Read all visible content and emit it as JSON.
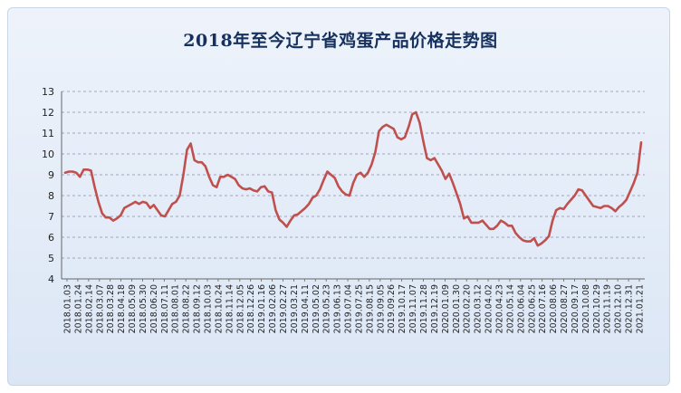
{
  "chart_data": {
    "type": "line",
    "title": "2018年至今辽宁省鸡蛋产品价格走势图",
    "xlabel": "",
    "ylabel": "",
    "ylim": [
      4,
      13
    ],
    "y_ticks": [
      4,
      5,
      6,
      7,
      8,
      9,
      10,
      11,
      12,
      13
    ],
    "grid": true,
    "legend": "none",
    "line_color": "#c0504d",
    "x_ticks": [
      "2018.01.03",
      "2018.01.24",
      "2018.02.14",
      "2018.03.07",
      "2018.03.28",
      "2018.04.18",
      "2018.05.09",
      "2018.05.30",
      "2018.06.20",
      "2018.07.11",
      "2018.08.01",
      "2018.08.22",
      "2018.09.12",
      "2018.10.03",
      "2018.10.24",
      "2018.11.14",
      "2018.12.05",
      "2018.12.26",
      "2019.01.16",
      "2019.02.06",
      "2019.02.27",
      "2019.03.21",
      "2019.04.11",
      "2019.05.02",
      "2019.05.23",
      "2019.06.13",
      "2019.07.04",
      "2019.07.25",
      "2019.08.15",
      "2019.09.05",
      "2019.09.26",
      "2019.10.17",
      "2019.11.07",
      "2019.11.28",
      "2019.12.19",
      "2020.01.09",
      "2020.01.30",
      "2020.02.20",
      "2020.03.12",
      "2020.04.02",
      "2020.04.23",
      "2020.05.14",
      "2020.06.04",
      "2020.06.25",
      "2020.07.16",
      "2020.08.06",
      "2020.08.27",
      "2020.09.17",
      "2020.10.08",
      "2020.10.29",
      "2020.11.19",
      "2020.12.10",
      "2020.12.31",
      "2021.01.21"
    ],
    "series": [
      {
        "values": [
          9.1,
          9.15,
          9.15,
          9.1,
          8.9,
          9.25,
          9.25,
          9.2,
          8.4,
          7.7,
          7.15,
          6.95,
          6.95,
          6.8,
          6.9,
          7.05,
          7.4,
          7.5,
          7.6,
          7.7,
          7.6,
          7.7,
          7.65,
          7.4,
          7.55,
          7.3,
          7.05,
          7.0,
          7.3,
          7.6,
          7.7,
          8.0,
          9.0,
          10.2,
          10.5,
          9.7,
          9.6,
          9.6,
          9.4,
          8.9,
          8.5,
          8.4,
          8.9,
          8.9,
          9.0,
          8.9,
          8.8,
          8.5,
          8.35,
          8.3,
          8.35,
          8.25,
          8.2,
          8.4,
          8.45,
          8.2,
          8.15,
          7.3,
          6.85,
          6.7,
          6.5,
          6.8,
          7.05,
          7.1,
          7.25,
          7.4,
          7.6,
          7.9,
          8.0,
          8.3,
          8.75,
          9.15,
          9.0,
          8.85,
          8.45,
          8.2,
          8.05,
          8.0,
          8.6,
          9.0,
          9.1,
          8.9,
          9.1,
          9.5,
          10.1,
          11.1,
          11.3,
          11.4,
          11.3,
          11.2,
          10.8,
          10.7,
          10.8,
          11.3,
          11.9,
          12.0,
          11.5,
          10.6,
          9.8,
          9.7,
          9.8,
          9.5,
          9.2,
          8.8,
          9.05,
          8.6,
          8.1,
          7.6,
          6.9,
          7.0,
          6.7,
          6.7,
          6.7,
          6.8,
          6.6,
          6.4,
          6.4,
          6.55,
          6.8,
          6.7,
          6.55,
          6.55,
          6.2,
          6.0,
          5.85,
          5.8,
          5.8,
          5.95,
          5.6,
          5.7,
          5.85,
          6.05,
          6.8,
          7.3,
          7.4,
          7.35,
          7.6,
          7.8,
          8.0,
          8.3,
          8.25,
          8.0,
          7.75,
          7.5,
          7.45,
          7.4,
          7.5,
          7.5,
          7.4,
          7.25,
          7.45,
          7.6,
          7.8,
          8.2,
          8.6,
          9.1,
          10.55
        ]
      }
    ]
  }
}
